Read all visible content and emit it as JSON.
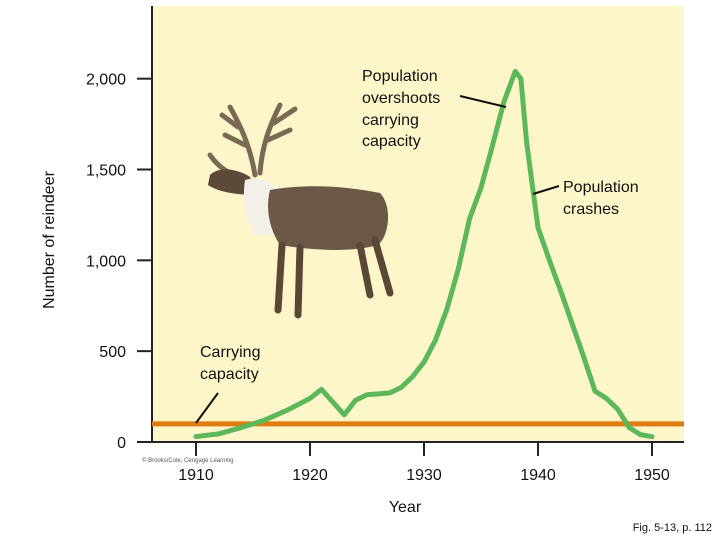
{
  "chart_data": {
    "type": "line",
    "xlabel": "Year",
    "ylabel": "Number of reindeer",
    "x_ticks": [
      "1910",
      "1920",
      "1930",
      "1940",
      "1950"
    ],
    "y_ticks": [
      "0",
      "500",
      "1,000",
      "1,500",
      "2,000"
    ],
    "xlim": [
      1910,
      1950
    ],
    "ylim": [
      0,
      2400
    ],
    "grid": false,
    "series": [
      {
        "color": "#5cb85a",
        "x": [
          1910,
          1912,
          1914,
          1916,
          1918,
          1920,
          1921,
          1922,
          1923,
          1924,
          1925,
          1926,
          1927,
          1928,
          1929,
          1930,
          1931,
          1932,
          1933,
          1934,
          1935,
          1936,
          1937,
          1938,
          1938.5,
          1939,
          1940,
          1941,
          1942,
          1943,
          1944,
          1945,
          1946,
          1947,
          1948,
          1949,
          1950
        ],
        "y": [
          30,
          45,
          80,
          120,
          175,
          240,
          290,
          220,
          150,
          230,
          260,
          265,
          270,
          300,
          360,
          440,
          560,
          730,
          950,
          1230,
          1400,
          1630,
          1870,
          2040,
          2000,
          1650,
          1180,
          1000,
          830,
          650,
          470,
          280,
          240,
          180,
          80,
          40,
          30
        ]
      }
    ],
    "reference_line": {
      "label": "Carrying capacity",
      "y": 100,
      "color": "#e07b10"
    },
    "annotations": {
      "overshoot": [
        "Population",
        "overshoots",
        "carrying",
        "capacity"
      ],
      "crash": [
        "Population",
        "crashes"
      ],
      "capacity": [
        "Carrying",
        "capacity"
      ]
    }
  },
  "credit": "© Brooks/Cole, Cengage Learning",
  "figure_ref": "Fig. 5-13, p. 112",
  "colors": {
    "plot_bg": "#fdf6c8",
    "curve": "#5cb85a",
    "capacity": "#e07b10"
  }
}
